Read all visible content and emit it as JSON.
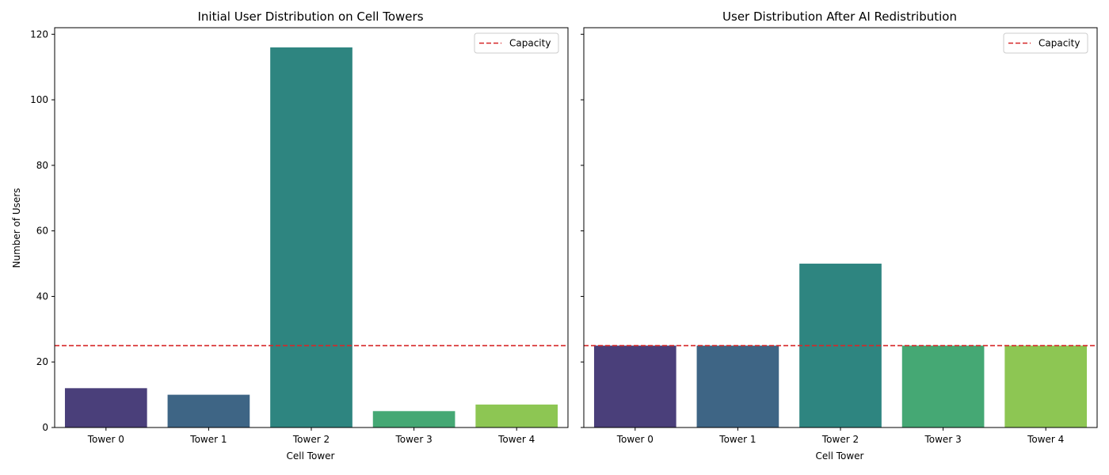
{
  "chart_data": [
    {
      "type": "bar",
      "title": "Initial User Distribution on Cell Towers",
      "xlabel": "Cell Tower",
      "ylabel": "Number of Users",
      "categories": [
        "Tower 0",
        "Tower 1",
        "Tower 2",
        "Tower 3",
        "Tower 4"
      ],
      "values": [
        12,
        10,
        116,
        5,
        7
      ],
      "ylim": [
        0,
        122
      ],
      "yticks": [
        "0",
        "20",
        "40",
        "60",
        "80",
        "100",
        "120"
      ],
      "capacity": 25,
      "legend": {
        "label": "Capacity",
        "placement": "top-right"
      },
      "grid": false
    },
    {
      "type": "bar",
      "title": "User Distribution After AI Redistribution",
      "xlabel": "Cell Tower",
      "ylabel": "",
      "categories": [
        "Tower 0",
        "Tower 1",
        "Tower 2",
        "Tower 3",
        "Tower 4"
      ],
      "values": [
        25,
        25,
        50,
        25,
        25
      ],
      "ylim": [
        0,
        122
      ],
      "yticks": [
        "0",
        "20",
        "40",
        "60",
        "80",
        "100",
        "120"
      ],
      "capacity": 25,
      "legend": {
        "label": "Capacity",
        "placement": "top-right"
      },
      "grid": false
    }
  ],
  "colors": {
    "bars": [
      "#4a3f7a",
      "#3e6585",
      "#2e8580",
      "#45a874",
      "#8dc653"
    ],
    "capacity_line": "#d62728",
    "axis": "#000000"
  }
}
